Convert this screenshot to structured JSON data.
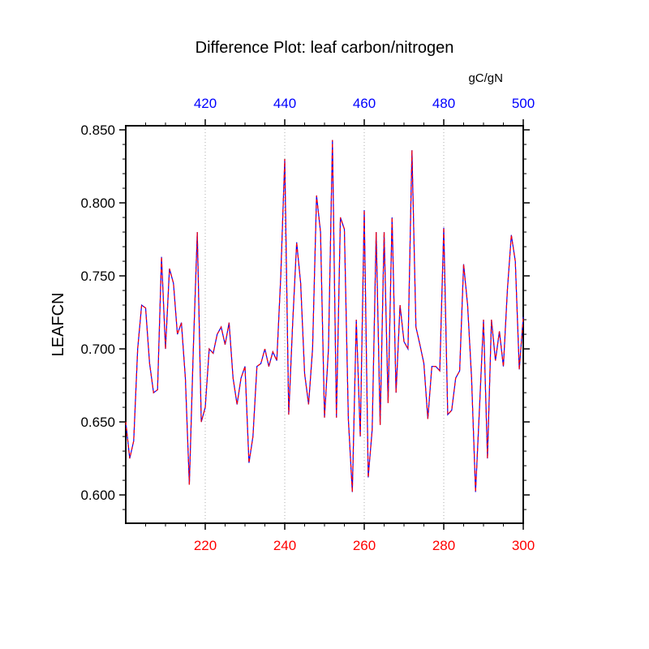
{
  "title": "Difference Plot: leaf carbon/nitrogen",
  "chart_data": {
    "type": "line",
    "title": "Difference Plot: leaf carbon/nitrogen",
    "ylabel": "LEAFCN",
    "top_axis_label": "gC/gN",
    "note": "Two overlapping identical curves (blue solid underneath, red dashed overlay) - a difference plot where both cases coincide.",
    "x_bottom": {
      "min": 200,
      "max": 300,
      "ticks": [
        220,
        240,
        260,
        280,
        300
      ],
      "minor_step": 5,
      "label_color": "#ff0000"
    },
    "x_top": {
      "min": 400,
      "max": 500,
      "ticks": [
        420,
        440,
        460,
        480,
        500
      ],
      "minor_step": 5,
      "label_color": "#0000ff"
    },
    "y": {
      "ticks": [
        0.6,
        0.65,
        0.7,
        0.75,
        0.8,
        0.85
      ],
      "minor_step": 0.01,
      "ylim": [
        0.5806,
        0.8528
      ],
      "label_color": "#000000",
      "tick_decimals": 3
    },
    "grid": {
      "vertical_at": [
        220,
        240,
        260,
        280
      ],
      "style": "dotted",
      "color": "#aaaaaa"
    },
    "x_start": 200,
    "x_step": 1,
    "values": [
      0.65,
      0.625,
      0.637,
      0.7,
      0.73,
      0.728,
      0.69,
      0.67,
      0.672,
      0.763,
      0.7,
      0.755,
      0.745,
      0.71,
      0.718,
      0.68,
      0.607,
      0.7,
      0.78,
      0.65,
      0.66,
      0.7,
      0.697,
      0.71,
      0.715,
      0.703,
      0.718,
      0.68,
      0.662,
      0.68,
      0.688,
      0.622,
      0.64,
      0.688,
      0.69,
      0.7,
      0.688,
      0.698,
      0.692,
      0.75,
      0.83,
      0.655,
      0.718,
      0.773,
      0.745,
      0.683,
      0.662,
      0.7,
      0.805,
      0.78,
      0.653,
      0.7,
      0.843,
      0.653,
      0.79,
      0.782,
      0.652,
      0.602,
      0.72,
      0.64,
      0.795,
      0.612,
      0.645,
      0.78,
      0.648,
      0.78,
      0.663,
      0.79,
      0.67,
      0.73,
      0.705,
      0.7,
      0.836,
      0.715,
      0.703,
      0.69,
      0.652,
      0.688,
      0.688,
      0.685,
      0.783,
      0.655,
      0.658,
      0.68,
      0.685,
      0.758,
      0.73,
      0.68,
      0.602,
      0.66,
      0.72,
      0.625,
      0.72,
      0.692,
      0.712,
      0.688,
      0.74,
      0.778,
      0.76,
      0.686,
      0.722
    ],
    "series_styles": [
      {
        "name": "case-blue-solid",
        "color": "#0000ff",
        "line_style": "solid"
      },
      {
        "name": "case-red-dashed",
        "color": "#ff0000",
        "line_style": "dashed"
      }
    ],
    "frame_color": "#000000"
  }
}
